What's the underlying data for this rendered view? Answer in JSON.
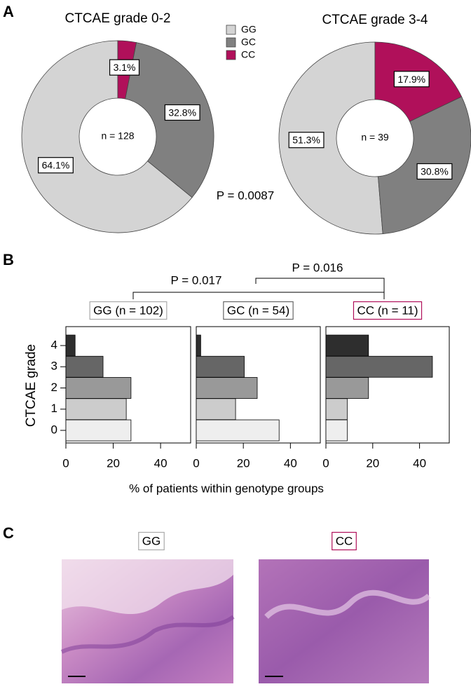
{
  "panel_labels": [
    "A",
    "B",
    "C"
  ],
  "annotations": [
    "P = 0.0087",
    "P = 0.017",
    "P = 0.016"
  ],
  "histology": {
    "labels": [
      "GG",
      "CC"
    ]
  },
  "chart_data": [
    {
      "type": "pie",
      "title": "CTCAE grade 0-2",
      "center_label": "n = 128",
      "categories": [
        "GG",
        "GC",
        "CC"
      ],
      "values": [
        64.1,
        32.8,
        3.1
      ],
      "value_labels": [
        "64.1%",
        "32.8%",
        "3.1%"
      ],
      "colors": [
        "#d4d4d4",
        "#808080",
        "#b0105a"
      ],
      "legend": true
    },
    {
      "type": "pie",
      "title": "CTCAE grade 3-4",
      "center_label": "n = 39",
      "categories": [
        "GG",
        "GC",
        "CC"
      ],
      "values": [
        51.3,
        30.8,
        17.9
      ],
      "value_labels": [
        "51.3%",
        "30.8%",
        "17.9%"
      ],
      "colors": [
        "#d4d4d4",
        "#808080",
        "#b0105a"
      ],
      "legend": false
    },
    {
      "type": "hbar",
      "title": "GG (n = 102)",
      "frame_color": "#aaaaaa",
      "y_label": "CTCAE grade",
      "categories": [
        "0",
        "1",
        "2",
        "3",
        "4"
      ],
      "values": [
        27.5,
        25.5,
        27.5,
        15.7,
        3.9
      ],
      "colors": [
        "#eeeeee",
        "#cccccc",
        "#999999",
        "#666666",
        "#2e2e2e"
      ],
      "xlim": [
        0,
        52.7
      ],
      "xticks": [
        0,
        20,
        40
      ]
    },
    {
      "type": "hbar",
      "title": "GC (n = 54)",
      "frame_color": "#666666",
      "x_label": "% of patients within genotype groups",
      "values": [
        35.2,
        16.7,
        25.9,
        20.4,
        1.9
      ],
      "colors": [
        "#eeeeee",
        "#cccccc",
        "#999999",
        "#666666",
        "#2e2e2e"
      ],
      "xlim": [
        0,
        52.7
      ],
      "xticks": [
        0,
        20,
        40
      ]
    },
    {
      "type": "hbar",
      "title": "CC (n = 11)",
      "frame_color": "#b0105a",
      "values": [
        9.1,
        9.1,
        18.2,
        45.5,
        18.2
      ],
      "colors": [
        "#eeeeee",
        "#cccccc",
        "#999999",
        "#666666",
        "#2e2e2e"
      ],
      "xlim": [
        0,
        52.7
      ],
      "xticks": [
        0,
        20,
        40
      ]
    }
  ]
}
